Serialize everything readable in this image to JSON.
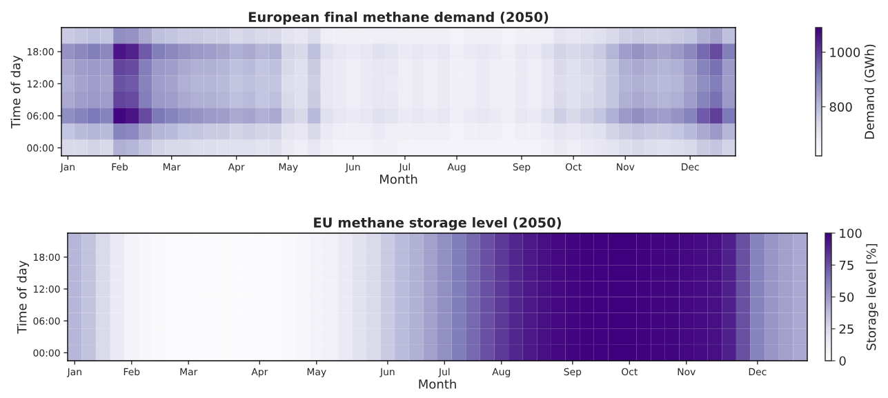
{
  "chart_data": [
    {
      "type": "heatmap",
      "title": "European final methane demand (2050)",
      "xlabel": "Month",
      "ylabel": "Time of day",
      "clabel": "Demand (GWh)",
      "categories": [
        "Jan",
        null,
        null,
        null,
        "Feb",
        null,
        null,
        null,
        "Mar",
        null,
        null,
        null,
        null,
        "Apr",
        null,
        null,
        null,
        "May",
        null,
        null,
        null,
        null,
        "Jun",
        null,
        null,
        null,
        "Jul",
        null,
        null,
        null,
        "Aug",
        null,
        null,
        null,
        null,
        "Sep",
        null,
        null,
        null,
        "Oct",
        null,
        null,
        null,
        "Nov",
        null,
        null,
        null,
        null,
        "Dec",
        null,
        null,
        null
      ],
      "y_categories": [
        null,
        "18:00",
        null,
        "12:00",
        null,
        "06:00",
        null,
        "00:00"
      ],
      "clim": [
        620,
        1090
      ],
      "cticks": [
        800,
        1000
      ],
      "cells": [
        [
          770,
          780,
          790,
          780,
          880,
          870,
          830,
          790,
          780,
          770,
          770,
          760,
          760,
          740,
          750,
          740,
          740,
          710,
          700,
          730,
          680,
          670,
          670,
          670,
          680,
          680,
          670,
          670,
          670,
          670,
          660,
          670,
          670,
          670,
          660,
          670,
          670,
          680,
          710,
          700,
          710,
          720,
          740,
          760,
          770,
          760,
          760,
          770,
          780,
          820,
          840,
          790
        ],
        [
          870,
          890,
          910,
          890,
          1060,
          1040,
          960,
          910,
          890,
          870,
          860,
          850,
          840,
          820,
          830,
          810,
          820,
          750,
          740,
          790,
          720,
          700,
          690,
          700,
          720,
          710,
          690,
          700,
          690,
          700,
          680,
          690,
          700,
          690,
          680,
          700,
          690,
          720,
          750,
          740,
          750,
          770,
          810,
          850,
          870,
          850,
          840,
          860,
          890,
          940,
          980,
          910
        ],
        [
          830,
          850,
          860,
          850,
          990,
          980,
          910,
          860,
          850,
          830,
          820,
          820,
          810,
          790,
          800,
          780,
          790,
          740,
          720,
          770,
          700,
          690,
          680,
          690,
          700,
          700,
          680,
          690,
          680,
          690,
          670,
          680,
          690,
          680,
          670,
          690,
          680,
          700,
          740,
          720,
          740,
          750,
          780,
          820,
          830,
          820,
          810,
          820,
          850,
          900,
          930,
          860
        ],
        [
          820,
          840,
          850,
          840,
          970,
          960,
          900,
          850,
          840,
          820,
          810,
          810,
          800,
          780,
          790,
          780,
          780,
          730,
          720,
          760,
          700,
          690,
          680,
          690,
          700,
          690,
          680,
          690,
          680,
          690,
          670,
          680,
          690,
          680,
          670,
          690,
          680,
          700,
          730,
          720,
          730,
          750,
          780,
          810,
          820,
          810,
          800,
          810,
          840,
          880,
          910,
          850
        ],
        [
          830,
          850,
          860,
          850,
          990,
          980,
          910,
          860,
          850,
          830,
          820,
          820,
          810,
          790,
          800,
          780,
          790,
          740,
          720,
          770,
          700,
          690,
          680,
          690,
          700,
          700,
          680,
          690,
          680,
          690,
          670,
          680,
          690,
          680,
          670,
          690,
          680,
          700,
          740,
          720,
          740,
          750,
          780,
          820,
          830,
          820,
          810,
          820,
          850,
          900,
          930,
          860
        ],
        [
          880,
          900,
          920,
          900,
          1080,
          1060,
          980,
          920,
          900,
          880,
          870,
          860,
          850,
          830,
          840,
          820,
          830,
          760,
          740,
          800,
          720,
          700,
          690,
          700,
          720,
          710,
          690,
          700,
          690,
          700,
          680,
          690,
          700,
          690,
          680,
          700,
          690,
          720,
          760,
          740,
          760,
          780,
          820,
          860,
          880,
          860,
          850,
          870,
          900,
          960,
          1000,
          920
        ],
        [
          780,
          800,
          810,
          800,
          900,
          890,
          840,
          810,
          800,
          780,
          780,
          770,
          770,
          750,
          760,
          750,
          750,
          710,
          700,
          740,
          690,
          680,
          670,
          680,
          690,
          680,
          670,
          680,
          670,
          680,
          660,
          670,
          680,
          670,
          660,
          680,
          670,
          690,
          710,
          700,
          710,
          720,
          750,
          770,
          780,
          770,
          770,
          780,
          800,
          830,
          860,
          810
        ],
        [
          740,
          740,
          750,
          740,
          820,
          810,
          780,
          750,
          740,
          740,
          730,
          730,
          720,
          720,
          720,
          710,
          720,
          690,
          680,
          700,
          670,
          660,
          660,
          660,
          670,
          670,
          660,
          660,
          660,
          660,
          660,
          660,
          660,
          660,
          660,
          660,
          660,
          670,
          690,
          680,
          690,
          700,
          710,
          730,
          740,
          730,
          720,
          730,
          740,
          770,
          780,
          750
        ]
      ]
    },
    {
      "type": "heatmap",
      "title": "EU methane storage level (2050)",
      "xlabel": "Month",
      "ylabel": "Time of day",
      "clabel": "Storage level [%]",
      "categories": [
        "Jan",
        null,
        null,
        null,
        "Feb",
        null,
        null,
        null,
        "Mar",
        null,
        null,
        null,
        null,
        "Apr",
        null,
        null,
        null,
        "May",
        null,
        null,
        null,
        null,
        "Jun",
        null,
        null,
        null,
        "Jul",
        null,
        null,
        null,
        "Aug",
        null,
        null,
        null,
        null,
        "Sep",
        null,
        null,
        null,
        "Oct",
        null,
        null,
        null,
        "Nov",
        null,
        null,
        null,
        null,
        "Dec",
        null,
        null,
        null
      ],
      "y_categories": [
        null,
        "18:00",
        null,
        "12:00",
        null,
        "06:00",
        null,
        "00:00"
      ],
      "clim": [
        0,
        100
      ],
      "cticks": [
        0,
        25,
        50,
        75,
        100
      ],
      "cells": [
        [
          40,
          35,
          25,
          15,
          8,
          5,
          3,
          2,
          2,
          1,
          1,
          1,
          1,
          2,
          2,
          3,
          5,
          8,
          10,
          15,
          20,
          25,
          32,
          38,
          42,
          48,
          55,
          62,
          68,
          75,
          82,
          88,
          92,
          95,
          97,
          98,
          99,
          99,
          100,
          100,
          99,
          98,
          98,
          97,
          96,
          95,
          90,
          75,
          60,
          52,
          48,
          45
        ],
        [
          40,
          35,
          25,
          15,
          8,
          5,
          3,
          2,
          2,
          1,
          1,
          1,
          1,
          2,
          2,
          3,
          5,
          8,
          10,
          15,
          20,
          25,
          32,
          38,
          42,
          48,
          55,
          62,
          68,
          75,
          82,
          88,
          92,
          95,
          97,
          98,
          99,
          99,
          100,
          100,
          99,
          98,
          98,
          97,
          96,
          95,
          90,
          75,
          60,
          52,
          48,
          45
        ],
        [
          40,
          35,
          25,
          15,
          8,
          5,
          3,
          2,
          2,
          1,
          1,
          1,
          1,
          2,
          2,
          3,
          5,
          8,
          10,
          15,
          20,
          25,
          32,
          38,
          42,
          48,
          55,
          62,
          68,
          75,
          82,
          88,
          92,
          95,
          97,
          98,
          99,
          99,
          100,
          100,
          99,
          98,
          98,
          97,
          96,
          95,
          90,
          75,
          60,
          52,
          48,
          45
        ],
        [
          40,
          35,
          25,
          15,
          8,
          5,
          3,
          2,
          2,
          1,
          1,
          1,
          1,
          2,
          2,
          3,
          5,
          8,
          10,
          15,
          20,
          25,
          32,
          38,
          42,
          48,
          55,
          62,
          68,
          75,
          82,
          88,
          92,
          95,
          97,
          98,
          99,
          99,
          100,
          100,
          99,
          98,
          98,
          97,
          96,
          95,
          90,
          75,
          60,
          52,
          48,
          45
        ],
        [
          40,
          35,
          25,
          15,
          8,
          5,
          3,
          2,
          2,
          1,
          1,
          1,
          1,
          2,
          2,
          3,
          5,
          8,
          10,
          15,
          20,
          25,
          32,
          38,
          42,
          48,
          55,
          62,
          68,
          75,
          82,
          88,
          92,
          95,
          97,
          98,
          99,
          99,
          100,
          100,
          99,
          98,
          98,
          97,
          96,
          95,
          90,
          75,
          60,
          52,
          48,
          45
        ],
        [
          40,
          35,
          25,
          15,
          8,
          5,
          3,
          2,
          2,
          1,
          1,
          1,
          1,
          2,
          2,
          3,
          5,
          8,
          10,
          15,
          20,
          25,
          32,
          38,
          42,
          48,
          55,
          62,
          68,
          75,
          82,
          88,
          92,
          95,
          97,
          98,
          99,
          99,
          100,
          100,
          99,
          98,
          98,
          97,
          96,
          95,
          90,
          75,
          60,
          52,
          48,
          45
        ],
        [
          40,
          35,
          25,
          15,
          8,
          5,
          3,
          2,
          2,
          1,
          1,
          1,
          1,
          2,
          2,
          3,
          5,
          8,
          10,
          15,
          20,
          25,
          32,
          38,
          42,
          48,
          55,
          62,
          68,
          75,
          82,
          88,
          92,
          95,
          97,
          98,
          99,
          99,
          100,
          100,
          99,
          98,
          98,
          97,
          96,
          95,
          90,
          75,
          60,
          52,
          48,
          45
        ],
        [
          40,
          35,
          25,
          15,
          8,
          5,
          3,
          2,
          2,
          1,
          1,
          1,
          1,
          2,
          2,
          3,
          5,
          8,
          10,
          15,
          20,
          25,
          32,
          38,
          42,
          48,
          55,
          62,
          68,
          75,
          82,
          88,
          92,
          95,
          97,
          98,
          99,
          99,
          100,
          100,
          99,
          98,
          98,
          97,
          96,
          95,
          90,
          75,
          60,
          52,
          48,
          45
        ]
      ]
    }
  ]
}
